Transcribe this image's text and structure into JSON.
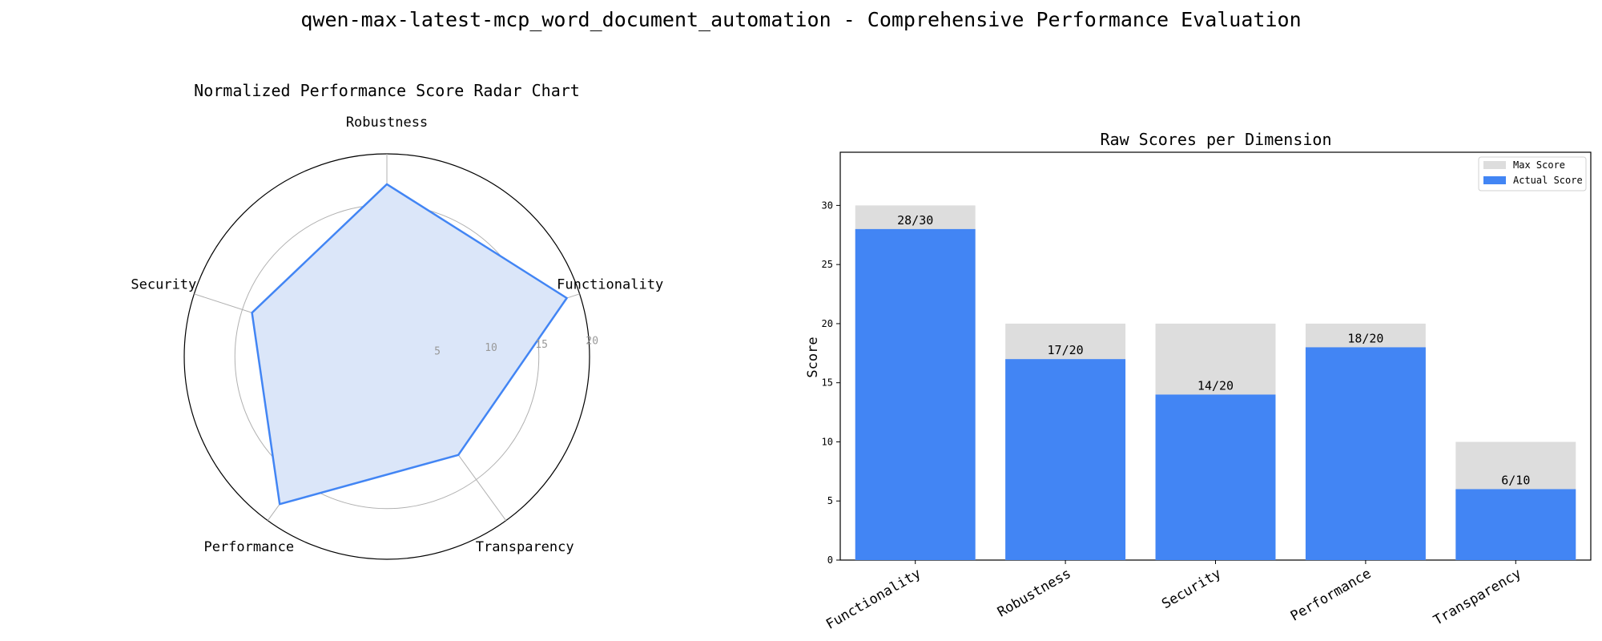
{
  "figure": {
    "suptitle": "qwen-max-latest-mcp_word_document_automation - Comprehensive Performance Evaluation"
  },
  "chart_data": [
    {
      "type": "radar",
      "title": "Normalized Performance Score Radar Chart",
      "categories": [
        "Functionality",
        "Robustness",
        "Security",
        "Performance",
        "Transparency"
      ],
      "values": [
        18.67,
        17,
        14,
        18,
        12
      ],
      "rlim": [
        0,
        20
      ],
      "rticks": [
        5,
        10,
        15,
        20
      ],
      "rtick_labels": [
        "5",
        "10",
        "15",
        "20"
      ],
      "color": "#4285f4",
      "fill_color": "#dbe6f9",
      "grid": true
    },
    {
      "type": "bar",
      "title": "Raw Scores per Dimension",
      "categories": [
        "Functionality",
        "Robustness",
        "Security",
        "Performance",
        "Transparency"
      ],
      "series": [
        {
          "name": "Max Score",
          "values": [
            30,
            20,
            20,
            20,
            10
          ],
          "color": "#dddddd"
        },
        {
          "name": "Actual Score",
          "values": [
            28,
            17,
            14,
            18,
            6
          ],
          "color": "#4285f4"
        }
      ],
      "data_labels": [
        "28/30",
        "17/20",
        "14/20",
        "18/20",
        "6/10"
      ],
      "xlabel": "",
      "ylabel": "Score",
      "ylim": [
        0,
        34.5
      ],
      "yticks": [
        0,
        5,
        10,
        15,
        20,
        25,
        30
      ],
      "legend": "top-right",
      "grid": false
    }
  ]
}
